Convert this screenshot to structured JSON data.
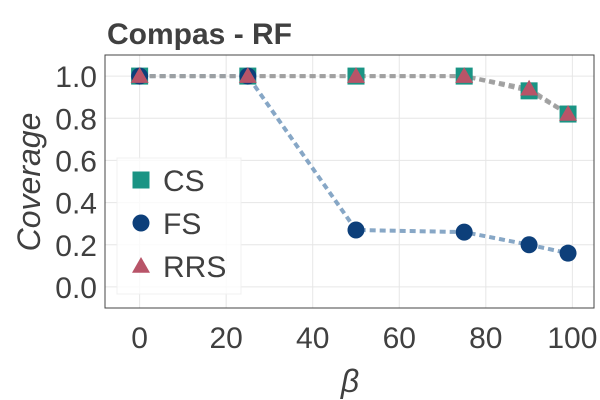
{
  "chart_data": {
    "type": "line",
    "title": "Compas - RF",
    "xlabel": "β",
    "ylabel": "Coverage",
    "xlim": [
      -8,
      105
    ],
    "ylim": [
      -0.1,
      1.1
    ],
    "xticks": [
      0,
      20,
      40,
      60,
      80,
      100
    ],
    "yticks": [
      0.0,
      0.2,
      0.4,
      0.6,
      0.8,
      1.0
    ],
    "xtick_labels": [
      "0",
      "20",
      "40",
      "60",
      "80",
      "100"
    ],
    "ytick_labels": [
      "0.0",
      "0.2",
      "0.4",
      "0.6",
      "0.8",
      "1.0"
    ],
    "grid": true,
    "legend_position": "left",
    "series": [
      {
        "name": "CS",
        "marker": "square",
        "color": "#1a9484",
        "line_color": "#9e9e9e",
        "x": [
          0,
          25,
          50,
          75,
          90,
          99
        ],
        "y": [
          1.0,
          1.0,
          1.0,
          1.0,
          0.93,
          0.82
        ]
      },
      {
        "name": "FS",
        "marker": "circle",
        "color": "#0d3f7a",
        "line_color": "#7a9dc0",
        "x": [
          0,
          25,
          50,
          75,
          90,
          99
        ],
        "y": [
          1.0,
          1.0,
          0.27,
          0.26,
          0.2,
          0.16
        ]
      },
      {
        "name": "RRS",
        "marker": "triangle",
        "color": "#b85468",
        "line_color": "#9e9e9e",
        "x": [
          0,
          25,
          50,
          75,
          90,
          99
        ],
        "y": [
          1.0,
          1.0,
          1.0,
          1.0,
          0.94,
          0.82
        ]
      }
    ]
  }
}
